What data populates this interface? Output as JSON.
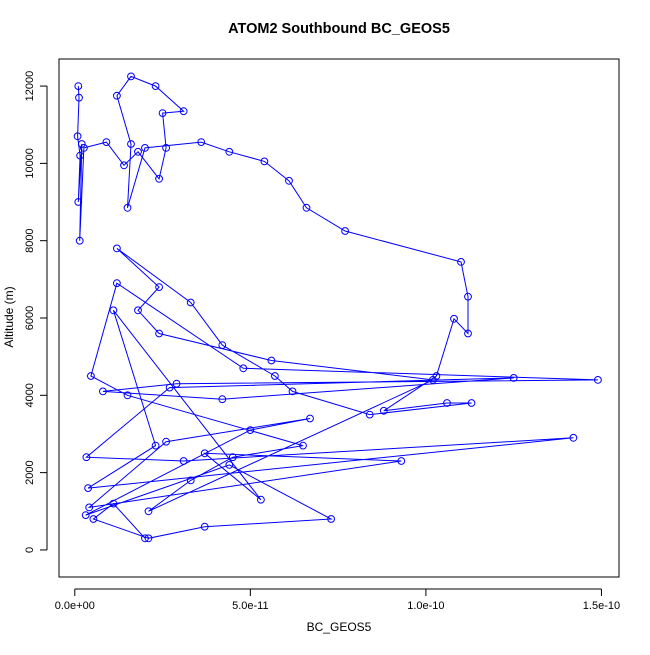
{
  "colors": {
    "series": "#0000ff",
    "axis": "#000000",
    "background": "#ffffff"
  },
  "chart_data": {
    "type": "line",
    "title": "ATOM2 Southbound BC_GEOS5",
    "xlabel": "BC_GEOS5",
    "ylabel": "Altitude (m)",
    "xlim": [
      -4.5e-12,
      1.55e-10
    ],
    "ylim": [
      -700,
      12700
    ],
    "xticks": [
      0,
      5e-11,
      1e-10,
      1.5e-10
    ],
    "xtick_labels": [
      "0.0e+00",
      "5.0e-11",
      "1.0e-10",
      "1.5e-10"
    ],
    "yticks": [
      0,
      2000,
      4000,
      6000,
      8000,
      10000,
      12000
    ],
    "ytick_labels": [
      "0",
      "2000",
      "4000",
      "6000",
      "8000",
      "10000",
      "12000"
    ],
    "grid": false,
    "legend": "none",
    "marker": "open-circle",
    "series": [
      {
        "x": [
          1e-12,
          1.2e-12,
          8e-13,
          1.5e-12,
          1e-12,
          2e-12,
          1.4e-12,
          2.6e-12,
          9e-12,
          1.4e-11,
          1.8e-11,
          2.4e-11,
          2.6e-11,
          2.5e-11,
          3.1e-11,
          2.3e-11,
          1.6e-11,
          1.2e-11,
          1.6e-11,
          1.5e-11,
          2e-11,
          3.6e-11,
          4.4e-11,
          5.4e-11,
          6.1e-11,
          6.6e-11,
          7.7e-11,
          1.1e-10,
          1.12e-10,
          1.12e-10,
          1.08e-10,
          1.03e-10,
          8.8e-11,
          1.06e-10,
          1.13e-10,
          8.4e-11,
          6.2e-11,
          5.7e-11,
          4.2e-11,
          3.3e-11,
          1.2e-11,
          2.4e-11,
          1.8e-11,
          2.4e-11,
          5.6e-11,
          1.02e-10,
          2.1e-11,
          3.3e-11,
          4.5e-11,
          6.5e-11,
          1.5e-11,
          4.6e-12,
          1.2e-11,
          4.8e-11,
          1.49e-10,
          2.9e-11,
          8e-12,
          4.2e-11,
          1.25e-10,
          2.7e-11,
          3.3e-12,
          3.1e-11,
          1.42e-10,
          3.8e-12,
          2.3e-11,
          1.1e-11,
          5.3e-11,
          3.7e-11,
          9.3e-11,
          4.1e-12,
          2.6e-11,
          6.7e-11,
          5e-11,
          3.1e-12,
          4.4e-11,
          7.3e-11,
          3.7e-11,
          2.1e-11,
          5.3e-12,
          1.1e-11,
          2e-11
        ],
        "y": [
          12000,
          11700,
          10700,
          10200,
          9000,
          10500,
          8000,
          10400,
          10550,
          9950,
          10300,
          9600,
          10400,
          11300,
          11350,
          12000,
          12250,
          11750,
          10500,
          8850,
          10400,
          10550,
          10300,
          10050,
          9550,
          8850,
          8250,
          7450,
          6550,
          5600,
          5980,
          4500,
          3600,
          3800,
          3800,
          3500,
          4100,
          4500,
          5300,
          6400,
          7800,
          6800,
          6200,
          5600,
          4900,
          4400,
          1000,
          1800,
          2400,
          2700,
          4000,
          4500,
          6900,
          4700,
          4400,
          4300,
          4100,
          3900,
          4450,
          4200,
          2400,
          2300,
          2900,
          1600,
          2700,
          6200,
          1300,
          2500,
          2300,
          1100,
          2800,
          3400,
          3100,
          900,
          2200,
          800,
          600,
          300,
          800,
          1200,
          300
        ]
      }
    ]
  }
}
